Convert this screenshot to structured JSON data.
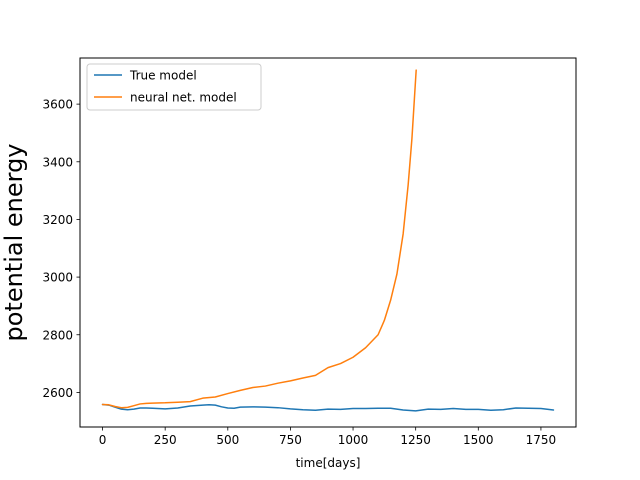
{
  "chart_data": {
    "type": "line",
    "title": "",
    "xlabel": "time[days]",
    "ylabel": "potential energy",
    "xlim": [
      -90,
      1890
    ],
    "ylim": [
      2480,
      3760
    ],
    "xticks": [
      0,
      250,
      500,
      750,
      1000,
      1250,
      1500,
      1750
    ],
    "yticks": [
      2600,
      2800,
      3000,
      3200,
      3400,
      3600
    ],
    "grid": false,
    "legend_position": "upper-left",
    "series": [
      {
        "name": "True model",
        "color": "#1f77b4",
        "x": [
          0,
          25,
          50,
          75,
          100,
          125,
          150,
          175,
          200,
          250,
          300,
          350,
          400,
          425,
          450,
          475,
          500,
          525,
          550,
          600,
          650,
          700,
          750,
          800,
          850,
          900,
          950,
          1000,
          1050,
          1100,
          1150,
          1200,
          1250,
          1300,
          1350,
          1400,
          1450,
          1500,
          1550,
          1600,
          1650,
          1700,
          1750,
          1800
        ],
        "y": [
          2558,
          2556,
          2549,
          2542,
          2540,
          2542,
          2546,
          2546,
          2545,
          2543,
          2546,
          2553,
          2556,
          2557,
          2556,
          2550,
          2546,
          2545,
          2549,
          2550,
          2549,
          2547,
          2543,
          2540,
          2538,
          2542,
          2541,
          2544,
          2544,
          2545,
          2545,
          2539,
          2536,
          2542,
          2541,
          2544,
          2541,
          2541,
          2538,
          2540,
          2546,
          2545,
          2544,
          2539
        ]
      },
      {
        "name": "neural net. model",
        "color": "#ff7f0e",
        "x": [
          0,
          25,
          50,
          75,
          100,
          125,
          150,
          175,
          200,
          250,
          300,
          350,
          400,
          450,
          500,
          550,
          600,
          650,
          700,
          750,
          800,
          850,
          900,
          950,
          1000,
          1050,
          1100,
          1125,
          1150,
          1175,
          1200,
          1220,
          1235,
          1245,
          1252
        ],
        "y": [
          2558,
          2557,
          2551,
          2547,
          2548,
          2554,
          2560,
          2562,
          2563,
          2564,
          2566,
          2568,
          2580,
          2584,
          2596,
          2607,
          2617,
          2622,
          2632,
          2640,
          2650,
          2659,
          2686,
          2700,
          2722,
          2755,
          2800,
          2850,
          2920,
          3010,
          3150,
          3320,
          3480,
          3620,
          3718
        ]
      }
    ]
  }
}
